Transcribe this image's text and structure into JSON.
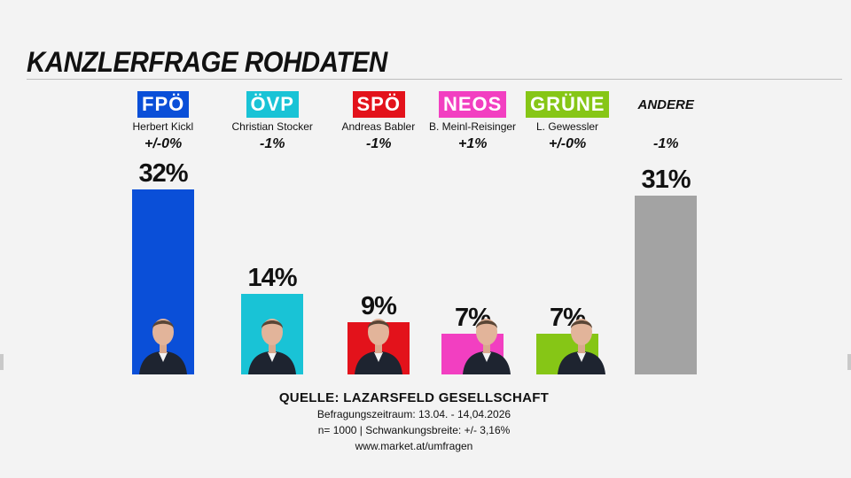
{
  "title": "KANZLERFRAGE ROHDATEN",
  "chart_data": {
    "type": "bar",
    "title": "KANZLERFRAGE ROHDATEN",
    "ylim": [
      0,
      32
    ],
    "categories": [
      "FPÖ",
      "ÖVP",
      "SPÖ",
      "NEOS",
      "GRÜNE",
      "ANDERE"
    ],
    "candidates": [
      "Herbert Kickl",
      "Christian Stocker",
      "Andreas Babler",
      "B. Meinl-Reisinger",
      "L. Gewessler",
      ""
    ],
    "changes": [
      "+/-0%",
      "-1%",
      "-1%",
      "+1%",
      "+/-0%",
      "-1%"
    ],
    "values": [
      32,
      14,
      9,
      7,
      7,
      31
    ],
    "value_labels": [
      "32%",
      "14%",
      "9%",
      "7%",
      "7%",
      "31%"
    ],
    "colors": [
      "#0a4fd8",
      "#19c3d6",
      "#e3121b",
      "#f23fc1",
      "#86c616",
      "#a3a3a3"
    ]
  },
  "footer": {
    "source": "QUELLE: LAZARSFELD GESELLSCHAFT",
    "period": "Befragungszeitraum: 13.04. - 14,04.2026",
    "sample": "n= 1000 | Schwankungsbreite: +/- 3,16%",
    "url": "www.market.at/umfragen"
  }
}
